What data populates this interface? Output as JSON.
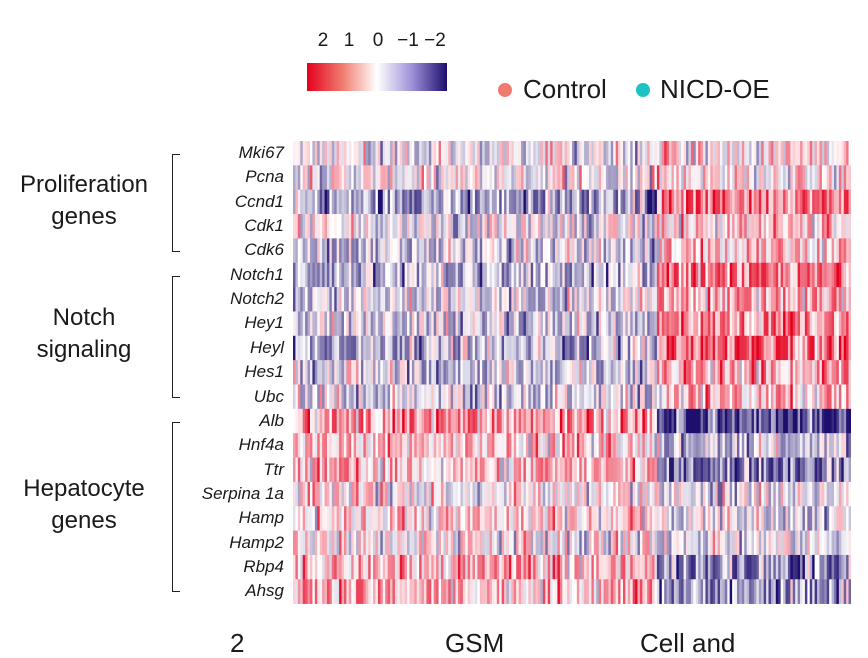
{
  "chart_data": {
    "type": "heatmap",
    "title": "",
    "color_scale": {
      "ticks": [
        "2",
        "1",
        "0",
        "−1",
        "−2"
      ],
      "min": -2,
      "max": 2,
      "high_color": "#e4001e",
      "mid_color": "#ffffff",
      "low_color": "#1e0f6e"
    },
    "legend": [
      {
        "label": "Control",
        "color": "#ef7b6f"
      },
      {
        "label": "NICD-OE",
        "color": "#1cc2c4"
      }
    ],
    "conditions": [
      "Control",
      "NICD-OE"
    ],
    "cells_per_condition": [
      150,
      80
    ],
    "genes": [
      "Mki67",
      "Pcna",
      "Ccnd1",
      "Cdk1",
      "Cdk6",
      "Notch1",
      "Notch2",
      "Hey1",
      "Heyl",
      "Hes1",
      "Ubc",
      "Alb",
      "Hnf4a",
      "Ttr",
      "Serpina 1a",
      "Hamp",
      "Hamp2",
      "Rbp4",
      "Ahsg"
    ],
    "mean_z_scores": [
      {
        "gene": "Mki67",
        "Control": -0.15,
        "NICD-OE": 0.3
      },
      {
        "gene": "Pcna",
        "Control": 0.0,
        "NICD-OE": 0.3
      },
      {
        "gene": "Ccnd1",
        "Control": -0.7,
        "NICD-OE": 1.1
      },
      {
        "gene": "Cdk1",
        "Control": -0.1,
        "NICD-OE": 0.4
      },
      {
        "gene": "Cdk6",
        "Control": -0.4,
        "NICD-OE": 0.5
      },
      {
        "gene": "Notch1",
        "Control": -0.6,
        "NICD-OE": 0.9
      },
      {
        "gene": "Notch2",
        "Control": -0.2,
        "NICD-OE": 0.6
      },
      {
        "gene": "Hey1",
        "Control": -0.35,
        "NICD-OE": 0.9
      },
      {
        "gene": "Heyl",
        "Control": -0.6,
        "NICD-OE": 1.2
      },
      {
        "gene": "Hes1",
        "Control": -0.4,
        "NICD-OE": 0.6
      },
      {
        "gene": "Ubc",
        "Control": -0.3,
        "NICD-OE": 0.6
      },
      {
        "gene": "Alb",
        "Control": 0.8,
        "NICD-OE": -1.5
      },
      {
        "gene": "Hnf4a",
        "Control": 0.4,
        "NICD-OE": -0.4
      },
      {
        "gene": "Ttr",
        "Control": 0.5,
        "NICD-OE": -1.1
      },
      {
        "gene": "Serpina 1a",
        "Control": 0.1,
        "NICD-OE": -0.1
      },
      {
        "gene": "Hamp",
        "Control": 0.35,
        "NICD-OE": -0.3
      },
      {
        "gene": "Hamp2",
        "Control": 0.1,
        "NICD-OE": -0.15
      },
      {
        "gene": "Rbp4",
        "Control": 0.5,
        "NICD-OE": -0.9
      },
      {
        "gene": "Ahsg",
        "Control": 0.6,
        "NICD-OE": -0.8
      }
    ],
    "groups": [
      {
        "label_lines": [
          "Proliferation",
          "genes"
        ],
        "genes": [
          "Mki67",
          "Pcna",
          "Ccnd1",
          "Cdk1",
          "Cdk6"
        ]
      },
      {
        "label_lines": [
          "Notch",
          "signaling"
        ],
        "genes": [
          "Notch1",
          "Notch2",
          "Hey1",
          "Heyl",
          "Hes1",
          "Ubc"
        ]
      },
      {
        "label_lines": [
          "Hepatocyte",
          "genes"
        ],
        "genes": [
          "Alb",
          "Hnf4a",
          "Ttr",
          "Serpina 1a",
          "Hamp",
          "Hamp2",
          "Rbp4",
          "Ahsg"
        ]
      }
    ],
    "bottom_labels": [
      "2",
      "GSM",
      "Cell and"
    ]
  }
}
